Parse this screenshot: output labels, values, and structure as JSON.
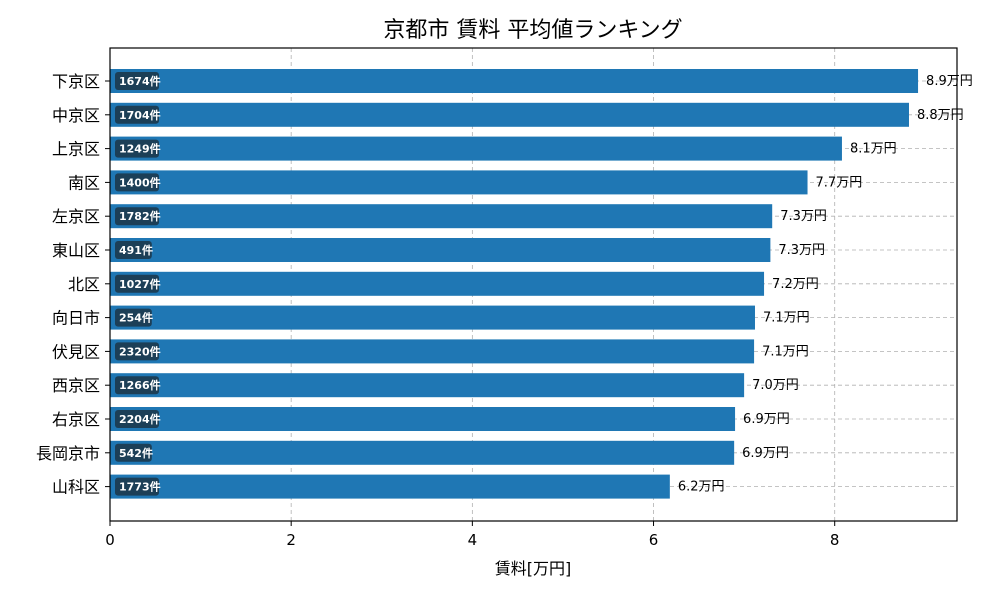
{
  "chart_data": {
    "type": "bar",
    "orientation": "horizontal",
    "title": "京都市 賃料 平均値ランキング",
    "xlabel": "賃料[万円]",
    "ylabel": "",
    "xlim": [
      0,
      9.35
    ],
    "xticks": [
      0,
      2,
      4,
      6,
      8
    ],
    "xtick_labels": [
      "0",
      "2",
      "4",
      "6",
      "8"
    ],
    "grid": true,
    "bar_color": "#1f77b4",
    "count_box_color": "#1c3f57",
    "categories": [
      "下京区",
      "中京区",
      "上京区",
      "南区",
      "左京区",
      "東山区",
      "北区",
      "向日市",
      "伏見区",
      "西京区",
      "右京区",
      "長岡京市",
      "山科区"
    ],
    "values": [
      8.92,
      8.82,
      8.08,
      7.7,
      7.31,
      7.29,
      7.22,
      7.12,
      7.11,
      7.0,
      6.9,
      6.89,
      6.18
    ],
    "value_labels": [
      "8.9万円",
      "8.8万円",
      "8.1万円",
      "7.7万円",
      "7.3万円",
      "7.3万円",
      "7.2万円",
      "7.1万円",
      "7.1万円",
      "7.0万円",
      "6.9万円",
      "6.9万円",
      "6.2万円"
    ],
    "counts": [
      "1674件",
      "1704件",
      "1249件",
      "1400件",
      "1782件",
      "491件",
      "1027件",
      "254件",
      "2320件",
      "1266件",
      "2204件",
      "542件",
      "1773件"
    ]
  }
}
